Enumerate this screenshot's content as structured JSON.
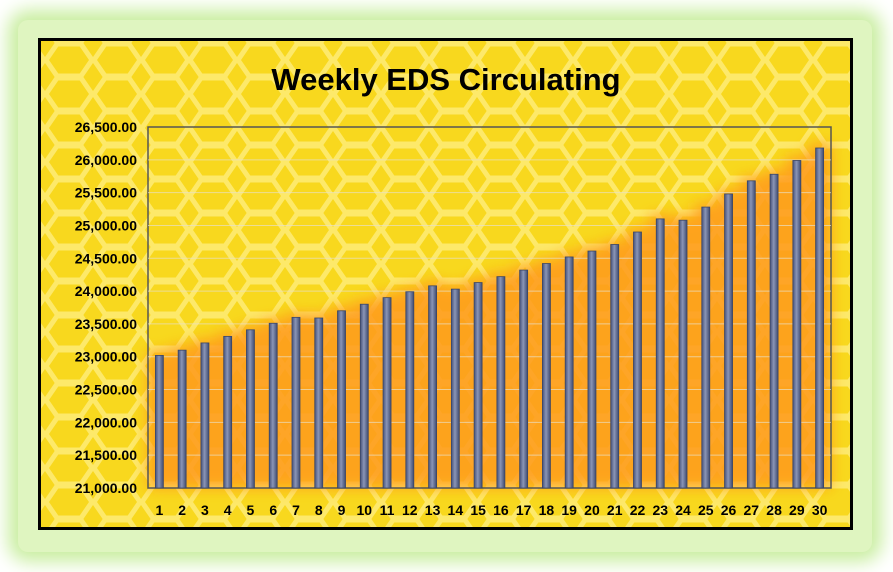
{
  "chart_data": {
    "type": "bar",
    "title": "Weekly EDS Circulating",
    "xlabel": "",
    "ylabel": "",
    "ylim": [
      21000,
      26500
    ],
    "yticks": [
      "21,000.00",
      "21,500.00",
      "22,000.00",
      "22,500.00",
      "23,000.00",
      "23,500.00",
      "24,000.00",
      "24,500.00",
      "25,000.00",
      "25,500.00",
      "26,000.00",
      "26,500.00"
    ],
    "ytick_values": [
      21000,
      21500,
      22000,
      22500,
      23000,
      23500,
      24000,
      24500,
      25000,
      25500,
      26000,
      26500
    ],
    "categories": [
      "1",
      "2",
      "3",
      "4",
      "5",
      "6",
      "7",
      "8",
      "9",
      "10",
      "11",
      "12",
      "13",
      "14",
      "15",
      "16",
      "17",
      "18",
      "19",
      "20",
      "21",
      "22",
      "23",
      "24",
      "25",
      "26",
      "27",
      "28",
      "29",
      "30"
    ],
    "values": [
      23020,
      23100,
      23210,
      23310,
      23410,
      23510,
      23600,
      23590,
      23700,
      23800,
      23900,
      23990,
      24080,
      24030,
      24130,
      24220,
      24320,
      24420,
      24520,
      24610,
      24710,
      24900,
      25100,
      25080,
      25280,
      25480,
      25680,
      25780,
      25990,
      26180
    ],
    "grid": true,
    "legend": "none",
    "colors": {
      "background": "#f8d81e",
      "honeycomb": "#fde96a",
      "bar_fill": "#5d6b8f",
      "bar_edge": "#3b4666",
      "glow": "#ff9a1c",
      "gridline": "#e8e0c8",
      "frame": "#000000"
    }
  }
}
